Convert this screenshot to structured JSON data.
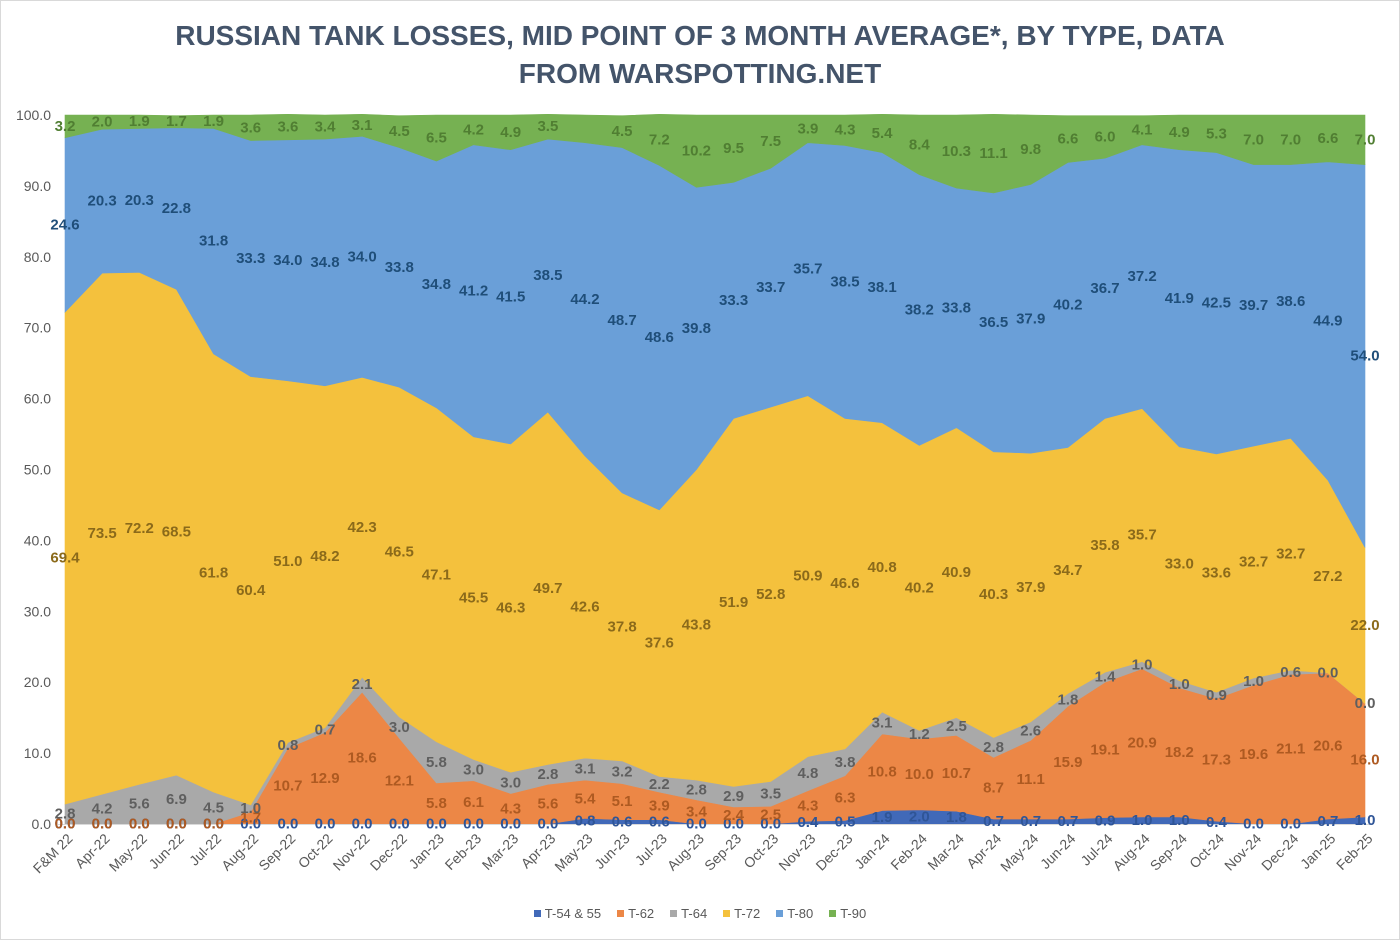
{
  "chart_data": {
    "type": "area",
    "stacked": true,
    "title": [
      "RUSSIAN TANK LOSSES, MID POINT OF 3 MONTH AVERAGE*, BY TYPE, DATA",
      "FROM WARSPOTTING.NET"
    ],
    "xlabel": "",
    "ylabel": "",
    "ylim": [
      0,
      100
    ],
    "yticks": [
      0,
      10,
      20,
      30,
      40,
      50,
      60,
      70,
      80,
      90,
      100
    ],
    "grid": false,
    "legend": "bottom",
    "categories": [
      "F&M 22",
      "Apr-22",
      "May-22",
      "Jun-22",
      "Jul-22",
      "Aug-22",
      "Sep-22",
      "Oct-22",
      "Nov-22",
      "Dec-22",
      "Jan-23",
      "Feb-23",
      "Mar-23",
      "Apr-23",
      "May-23",
      "Jun-23",
      "Jul-23",
      "Aug-23",
      "Sep-23",
      "Oct-23",
      "Nov-23",
      "Dec-23",
      "Jan-24",
      "Feb-24",
      "Mar-24",
      "Apr-24",
      "May-24",
      "Jun-24",
      "Jul-24",
      "Aug-24",
      "Sep-24",
      "Oct-24",
      "Nov-24",
      "Dec-24",
      "Jan-25",
      "Feb-25"
    ],
    "series": [
      {
        "name": "T-54 & 55",
        "color": "#4169b8",
        "label_color": "#2f5597",
        "values": [
          0.0,
          0.0,
          0.0,
          0.0,
          0.0,
          0.0,
          0.0,
          0.0,
          0.0,
          0.0,
          0.0,
          0.0,
          0.0,
          0.0,
          0.8,
          0.6,
          0.6,
          0.0,
          0.0,
          0.0,
          0.4,
          0.5,
          1.9,
          2.0,
          1.8,
          0.7,
          0.7,
          0.7,
          0.9,
          1.0,
          1.0,
          0.4,
          0.0,
          0.0,
          0.7,
          1.0
        ]
      },
      {
        "name": "T-62",
        "color": "#ec8746",
        "label_color": "#ae5a21",
        "values": [
          0.0,
          0.0,
          0.0,
          0.0,
          0.0,
          1.7,
          10.7,
          12.9,
          18.6,
          12.1,
          5.8,
          6.1,
          4.3,
          5.6,
          5.4,
          5.1,
          3.9,
          3.4,
          2.4,
          2.5,
          4.3,
          6.3,
          10.8,
          10.0,
          10.7,
          8.7,
          11.1,
          15.9,
          19.1,
          20.9,
          18.2,
          17.3,
          19.6,
          21.1,
          20.6,
          16.0
        ]
      },
      {
        "name": "T-64",
        "color": "#a9a9a9",
        "label_color": "#5f5f5f",
        "values": [
          2.8,
          4.2,
          5.6,
          6.9,
          4.5,
          1.0,
          0.8,
          0.7,
          2.1,
          3.0,
          5.8,
          3.0,
          3.0,
          2.8,
          3.1,
          3.2,
          2.2,
          2.8,
          2.9,
          3.5,
          4.8,
          3.8,
          3.1,
          1.2,
          2.5,
          2.8,
          2.6,
          1.8,
          1.4,
          1.0,
          1.0,
          0.9,
          1.0,
          0.6,
          0.0,
          0.0
        ]
      },
      {
        "name": "T-72",
        "color": "#f4c13d",
        "label_color": "#8b6a1a",
        "values": [
          69.4,
          73.5,
          72.2,
          68.5,
          61.8,
          60.4,
          51.0,
          48.2,
          42.3,
          46.5,
          47.1,
          45.5,
          46.3,
          49.7,
          42.6,
          37.8,
          37.6,
          43.8,
          51.9,
          52.8,
          50.9,
          46.6,
          40.8,
          40.2,
          40.9,
          40.3,
          37.9,
          34.7,
          35.8,
          35.7,
          33.0,
          33.6,
          32.7,
          32.7,
          27.2,
          22.0
        ]
      },
      {
        "name": "T-80",
        "color": "#6a9fd8",
        "label_color": "#1f4e79",
        "values": [
          24.6,
          20.3,
          20.3,
          22.8,
          31.8,
          33.3,
          34.0,
          34.8,
          34.0,
          33.8,
          34.8,
          41.2,
          41.5,
          38.5,
          44.2,
          48.7,
          48.6,
          39.8,
          33.3,
          33.7,
          35.7,
          38.5,
          38.1,
          38.2,
          33.8,
          36.5,
          37.9,
          40.2,
          36.7,
          37.2,
          41.9,
          42.5,
          39.7,
          38.6,
          44.9,
          54.0
        ]
      },
      {
        "name": "T-90",
        "color": "#76b152",
        "label_color": "#507e32",
        "values": [
          3.2,
          2.0,
          1.9,
          1.7,
          1.9,
          3.6,
          3.6,
          3.4,
          3.1,
          4.5,
          6.5,
          4.2,
          4.9,
          3.5,
          3.9,
          4.5,
          7.2,
          10.2,
          9.5,
          7.5,
          3.9,
          4.3,
          5.4,
          8.4,
          10.3,
          11.1,
          9.8,
          6.6,
          6.0,
          4.1,
          4.9,
          5.3,
          7.0,
          7.0,
          6.6,
          7.0
        ]
      }
    ]
  }
}
